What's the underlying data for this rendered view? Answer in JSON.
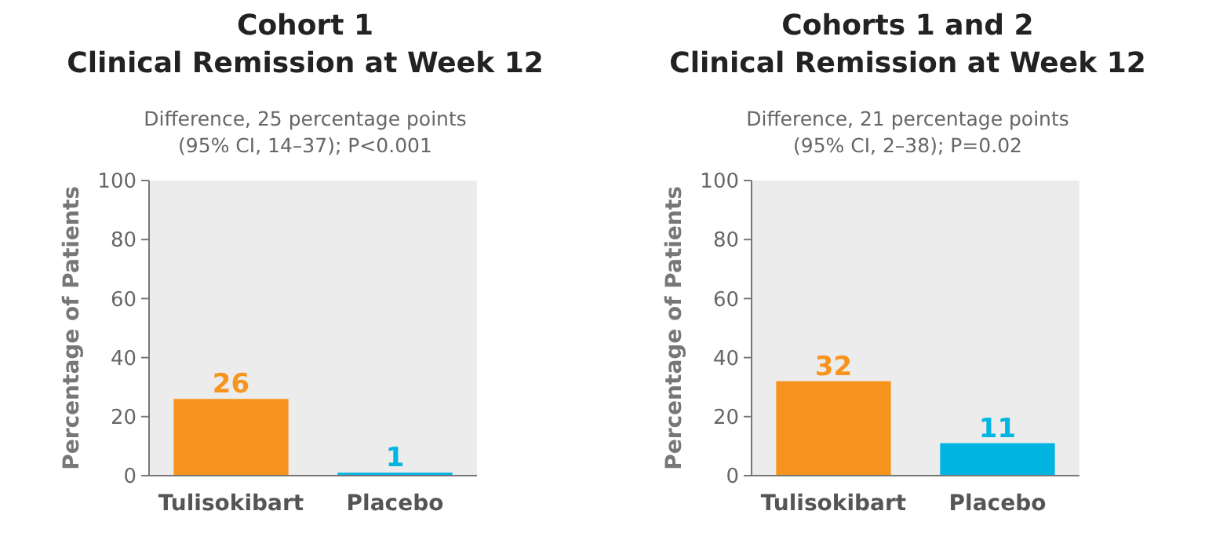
{
  "chart_data": [
    {
      "type": "bar",
      "title": "Cohort 1\nClinical Remission at Week 12",
      "subtitle": "Difference, 25 percentage points\n(95% CI, 14–37); P<0.001",
      "ylabel": "Percentage of Patients",
      "categories": [
        "Tulisokibart",
        "Placebo"
      ],
      "values": [
        26,
        1
      ],
      "colors": [
        "#f7941d",
        "#00b5e2"
      ],
      "ylim": [
        0,
        100
      ],
      "yticks": [
        0,
        20,
        40,
        60,
        80,
        100
      ],
      "data_labels": true,
      "grid": false
    },
    {
      "type": "bar",
      "title": "Cohorts 1 and 2\nClinical Remission at Week 12",
      "subtitle": "Difference, 21 percentage points\n(95% CI, 2–38); P=0.02",
      "ylabel": "Percentage of Patients",
      "categories": [
        "Tulisokibart",
        "Placebo"
      ],
      "values": [
        32,
        11
      ],
      "colors": [
        "#f7941d",
        "#00b5e2"
      ],
      "ylim": [
        0,
        100
      ],
      "yticks": [
        0,
        20,
        40,
        60,
        80,
        100
      ],
      "data_labels": true,
      "grid": false
    }
  ]
}
